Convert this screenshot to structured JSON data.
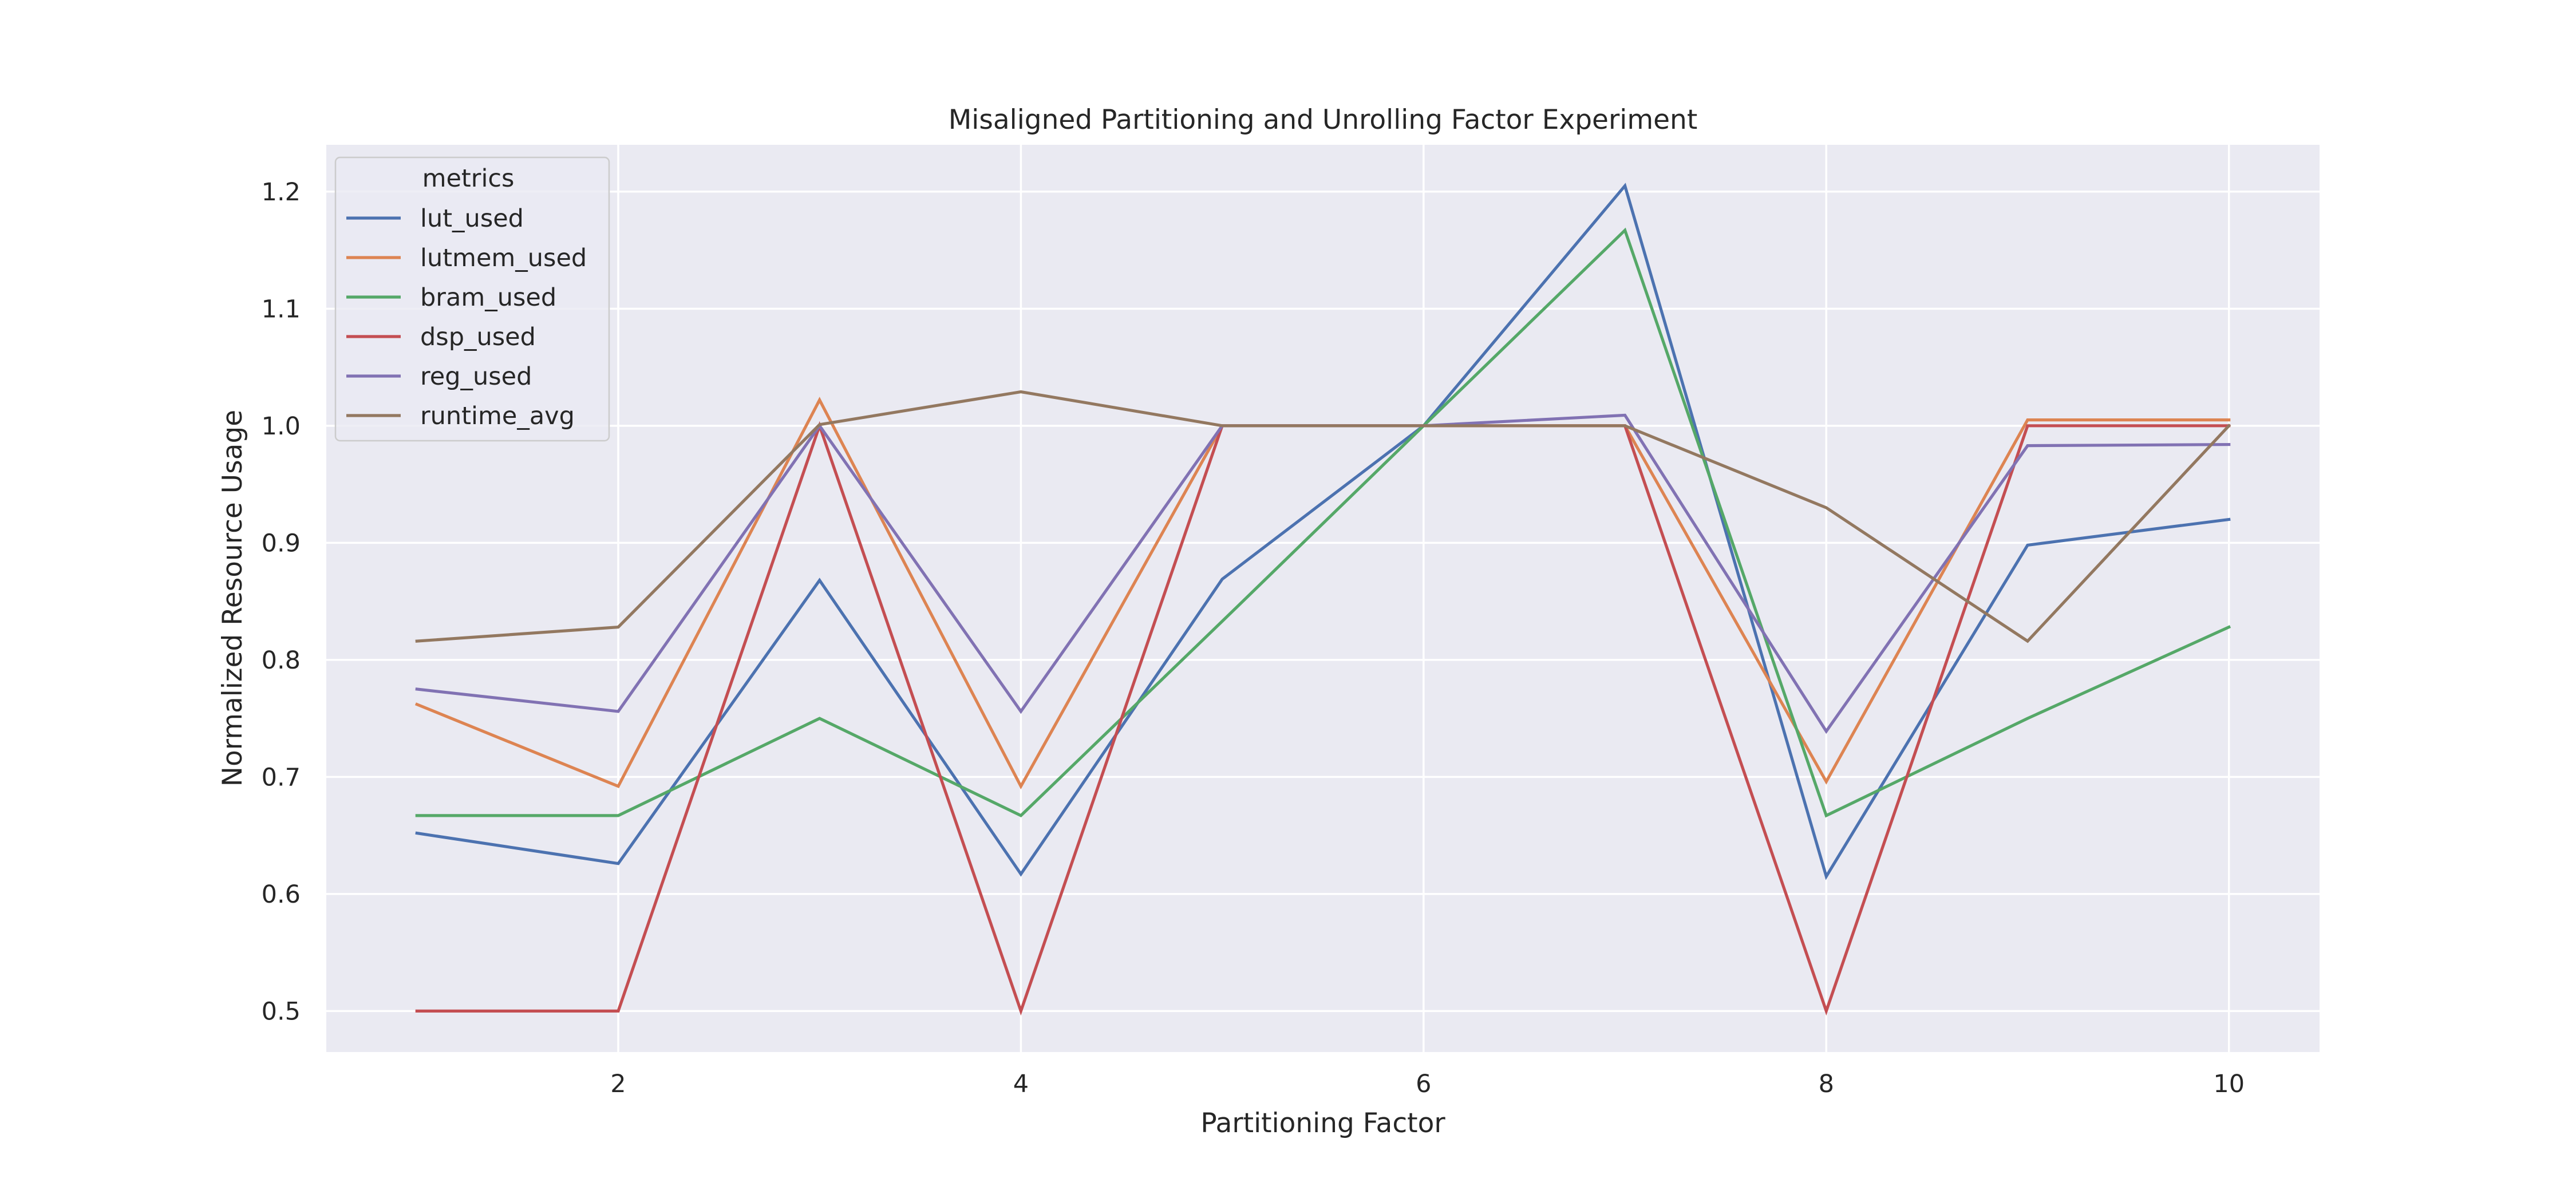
{
  "chart_data": {
    "type": "line",
    "title": "Misaligned Partitioning and Unrolling Factor Experiment",
    "xlabel": "Partitioning Factor",
    "ylabel": "Normalized Resource Usage",
    "xlim": [
      0.55,
      10.45
    ],
    "ylim": [
      0.465,
      1.24
    ],
    "x": [
      1,
      2,
      3,
      4,
      5,
      6,
      7,
      8,
      9,
      10
    ],
    "xticks": [
      2,
      4,
      6,
      8,
      10
    ],
    "yticks": [
      0.5,
      0.6,
      0.7,
      0.8,
      0.9,
      1.0,
      1.1,
      1.2
    ],
    "grid": true,
    "legend": {
      "title": "metrics",
      "position": "upper left"
    },
    "series": [
      {
        "name": "lut_used",
        "color": "#4c72b0",
        "values": [
          0.652,
          0.626,
          0.868,
          0.617,
          0.869,
          1.0,
          1.205,
          0.615,
          0.898,
          0.92
        ]
      },
      {
        "name": "lutmem_used",
        "color": "#dd8452",
        "values": [
          0.762,
          0.692,
          1.022,
          0.692,
          1.0,
          1.0,
          1.0,
          0.696,
          1.005,
          1.005
        ]
      },
      {
        "name": "bram_used",
        "color": "#55a868",
        "values": [
          0.667,
          0.667,
          0.75,
          0.667,
          0.833,
          1.0,
          1.167,
          0.667,
          0.75,
          0.828
        ]
      },
      {
        "name": "dsp_used",
        "color": "#c44e52",
        "values": [
          0.5,
          0.5,
          1.0,
          0.5,
          1.0,
          1.0,
          1.0,
          0.5,
          1.0,
          1.0
        ]
      },
      {
        "name": "reg_used",
        "color": "#8172b3",
        "values": [
          0.775,
          0.756,
          1.0,
          0.756,
          1.0,
          1.0,
          1.009,
          0.739,
          0.983,
          0.984
        ]
      },
      {
        "name": "runtime_avg",
        "color": "#937860",
        "values": [
          0.816,
          0.828,
          1.001,
          1.029,
          1.0,
          1.0,
          1.0,
          0.93,
          0.816,
          1.0
        ]
      }
    ]
  }
}
